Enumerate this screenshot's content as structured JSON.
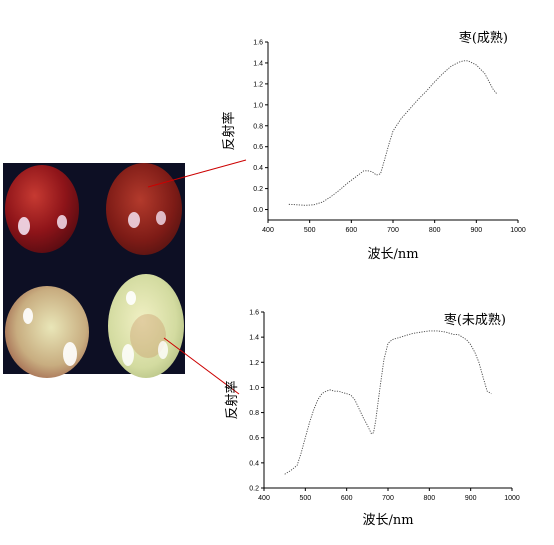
{
  "photo": {
    "subjects": [
      "ripe-jujube",
      "ripe-jujube",
      "unripe-jujube",
      "unripe-jujube"
    ],
    "colors": {
      "background": "#0d0f24",
      "ripe": "#9a1a1e",
      "unripe": "#cfd9a0",
      "pointer": "#cc0000"
    }
  },
  "chart_data": [
    {
      "type": "line",
      "title": "枣(成熟)",
      "xlabel": "波长/nm",
      "ylabel": "反射率",
      "xlim": [
        400,
        1000
      ],
      "ylim": [
        -0.1,
        1.6
      ],
      "xticks": [
        "400",
        "500",
        "600",
        "700",
        "800",
        "900",
        "1000"
      ],
      "yticks": [
        "0.0",
        "0.2",
        "0.4",
        "0.6",
        "0.8",
        "1.0",
        "1.2",
        "1.4",
        "1.6"
      ],
      "ytick_values": [
        0,
        0.2,
        0.4,
        0.6,
        0.8,
        1.0,
        1.2,
        1.4,
        1.6
      ],
      "x": [
        450,
        470,
        490,
        510,
        530,
        550,
        570,
        590,
        610,
        630,
        640,
        650,
        660,
        670,
        680,
        690,
        700,
        720,
        740,
        760,
        780,
        800,
        820,
        840,
        860,
        870,
        880,
        900,
        920,
        940,
        950
      ],
      "y": [
        0.05,
        0.045,
        0.04,
        0.045,
        0.07,
        0.12,
        0.18,
        0.25,
        0.31,
        0.37,
        0.37,
        0.36,
        0.33,
        0.34,
        0.48,
        0.62,
        0.75,
        0.87,
        0.96,
        1.05,
        1.13,
        1.22,
        1.3,
        1.37,
        1.41,
        1.42,
        1.42,
        1.38,
        1.3,
        1.15,
        1.1
      ]
    },
    {
      "type": "line",
      "title": "枣(未成熟)",
      "xlabel": "波长/nm",
      "ylabel": "反射率",
      "xlim": [
        400,
        1000
      ],
      "ylim": [
        0.2,
        1.6
      ],
      "xticks": [
        "400",
        "500",
        "600",
        "700",
        "800",
        "900",
        "1000"
      ],
      "yticks": [
        "0.2",
        "0.4",
        "0.6",
        "0.8",
        "1.0",
        "1.2",
        "1.4",
        "1.6"
      ],
      "ytick_values": [
        0.2,
        0.4,
        0.6,
        0.8,
        1.0,
        1.2,
        1.4,
        1.6
      ],
      "x": [
        450,
        465,
        480,
        490,
        500,
        510,
        520,
        530,
        540,
        550,
        560,
        570,
        580,
        590,
        600,
        610,
        620,
        630,
        640,
        650,
        660,
        665,
        670,
        680,
        690,
        700,
        710,
        720,
        740,
        760,
        780,
        800,
        820,
        840,
        860,
        870,
        880,
        890,
        900,
        910,
        920,
        930,
        940,
        950
      ],
      "y": [
        0.31,
        0.34,
        0.38,
        0.48,
        0.6,
        0.72,
        0.82,
        0.9,
        0.95,
        0.97,
        0.98,
        0.97,
        0.97,
        0.96,
        0.95,
        0.94,
        0.9,
        0.83,
        0.76,
        0.7,
        0.63,
        0.64,
        0.73,
        0.98,
        1.22,
        1.35,
        1.38,
        1.39,
        1.41,
        1.43,
        1.44,
        1.45,
        1.45,
        1.44,
        1.42,
        1.42,
        1.4,
        1.38,
        1.34,
        1.28,
        1.2,
        1.08,
        0.97,
        0.95
      ]
    }
  ]
}
